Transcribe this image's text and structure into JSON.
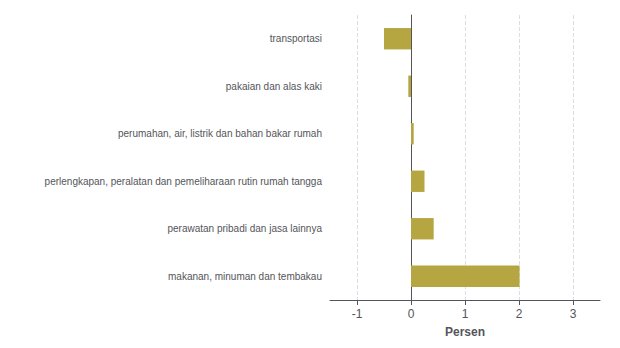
{
  "chart_data": {
    "type": "bar",
    "orientation": "horizontal",
    "categories": [
      "makanan, minuman dan tembakau",
      "perawatan pribadi dan jasa lainnya",
      "perlengkapan, peralatan dan pemeliharaan rutin rumah tangga",
      "perumahan, air, listrik dan bahan bakar rumah",
      "pakaian dan alas kaki",
      "transportasi"
    ],
    "values": [
      2.01,
      0.42,
      0.25,
      0.05,
      -0.05,
      -0.5
    ],
    "color": "#b5a642",
    "xlabel": "Persen",
    "xlim": [
      -1.5,
      3.5
    ],
    "xticks": [
      -1,
      0,
      1,
      2,
      3
    ],
    "grid": true
  }
}
